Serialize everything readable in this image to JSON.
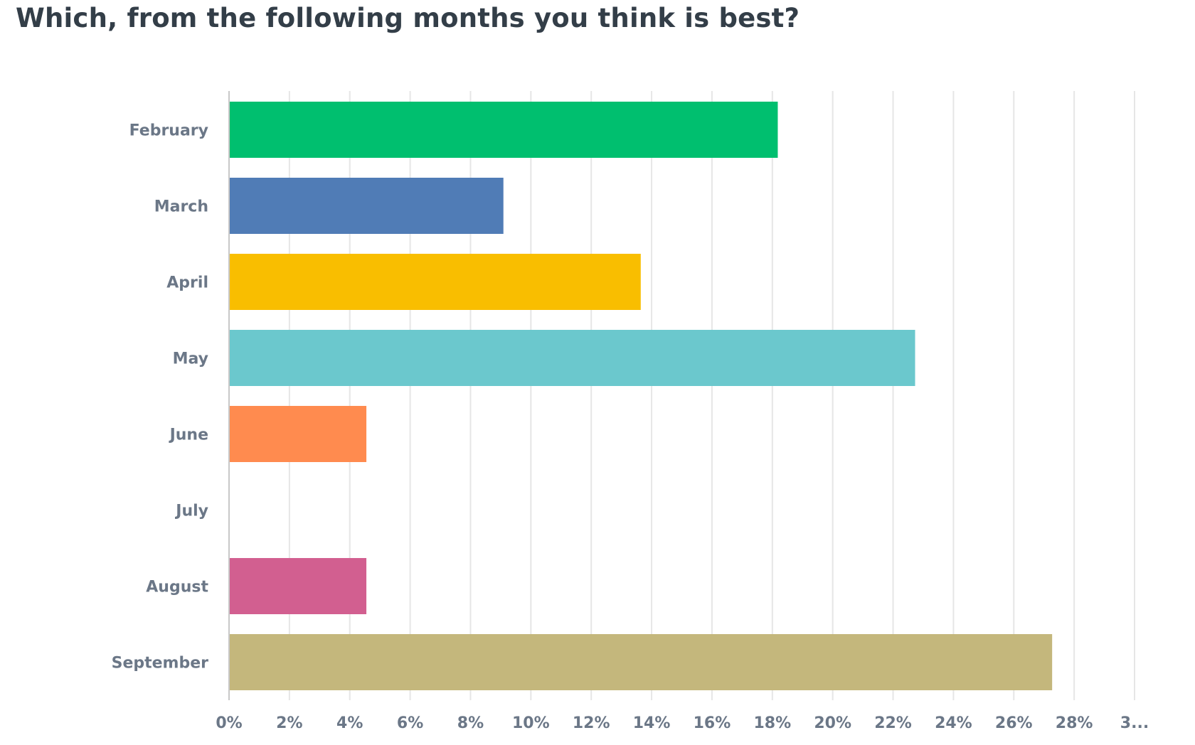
{
  "chart_data": {
    "type": "bar",
    "orientation": "horizontal",
    "title": "Which, from the following months you think is best?",
    "xlabel": "",
    "ylabel": "",
    "categories": [
      "February",
      "March",
      "April",
      "May",
      "June",
      "July",
      "August",
      "September"
    ],
    "values": [
      18.18,
      9.09,
      13.64,
      22.73,
      4.55,
      0,
      4.55,
      27.27
    ],
    "value_unit": "%",
    "xlim": [
      0,
      30
    ],
    "x_ticks": [
      "0%",
      "2%",
      "4%",
      "6%",
      "8%",
      "10%",
      "12%",
      "14%",
      "16%",
      "18%",
      "20%",
      "22%",
      "24%",
      "26%",
      "28%",
      "3..."
    ],
    "grid": true,
    "legend": "none",
    "colors": [
      "#00bf6f",
      "#507cb6",
      "#f9be00",
      "#6bc8cd",
      "#ff8b4f",
      "#7f7fff",
      "#d25f90",
      "#c4b77c"
    ]
  }
}
